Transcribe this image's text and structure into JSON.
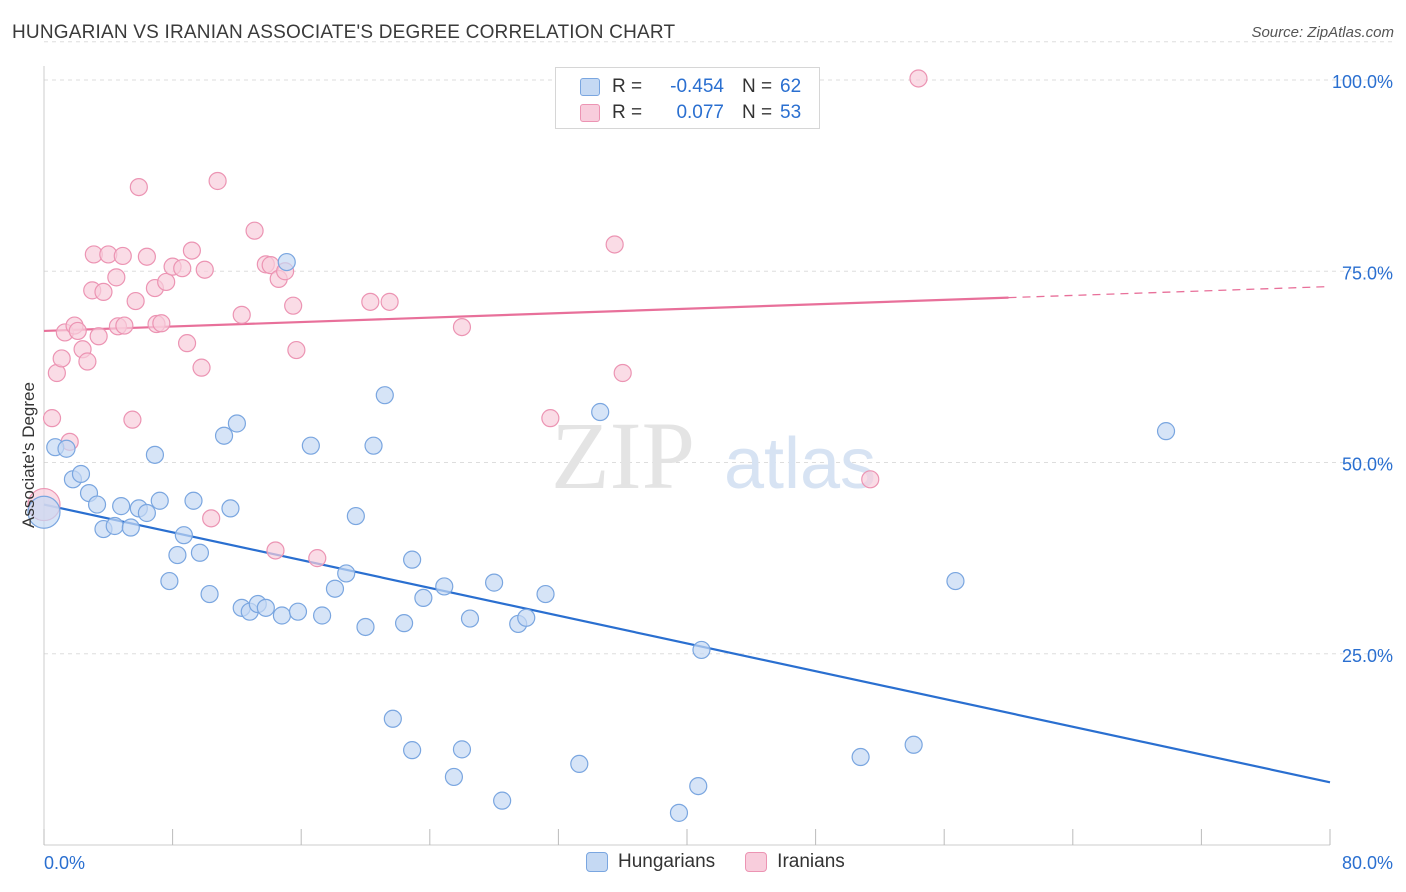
{
  "title": "HUNGARIAN VS IRANIAN ASSOCIATE'S DEGREE CORRELATION CHART",
  "source": "Source: ZipAtlas.com",
  "watermark": {
    "zip": "ZIP",
    "atlas": "atlas"
  },
  "colors": {
    "blue_fill": "#c5d9f3",
    "blue_stroke": "#7aa6e0",
    "blue_line": "#2a6fd0",
    "pink_fill": "#f8cddc",
    "pink_stroke": "#ec94b3",
    "pink_line": "#e8709a",
    "value_text": "#2a6fd0",
    "grid": "#dddddd"
  },
  "legend": {
    "rows": [
      {
        "r_label": "R =",
        "r_value": "-0.454",
        "n_label": "N =",
        "n_value": "62"
      },
      {
        "r_label": "R =",
        "r_value": "0.077",
        "n_label": "N =",
        "n_value": "53"
      }
    ]
  },
  "bottom_legend": {
    "items": [
      "Hungarians",
      "Iranians"
    ]
  },
  "chart_data": {
    "type": "scatter",
    "title": "HUNGARIAN VS IRANIAN ASSOCIATE'S DEGREE CORRELATION CHART",
    "xlabel": "",
    "ylabel": "Associate's Degree",
    "xlim": [
      0,
      80
    ],
    "ylim": [
      0,
      105
    ],
    "x_tick_labels": [
      "0.0%",
      "80.0%"
    ],
    "y_ticks": [
      25,
      50,
      75,
      100
    ],
    "y_tick_labels": [
      "25.0%",
      "50.0%",
      "75.0%",
      "100.0%"
    ],
    "grid": true,
    "legend_position": "top-center",
    "series": [
      {
        "name": "Hungarians",
        "r": -0.454,
        "n": 62,
        "trend": {
          "x": [
            0,
            80
          ],
          "y": [
            44.5,
            8.2
          ],
          "dashed_from": null
        },
        "points": [
          [
            0.0,
            43.5
          ],
          [
            0.7,
            52.0
          ],
          [
            1.4,
            51.8
          ],
          [
            1.8,
            47.8
          ],
          [
            2.3,
            48.5
          ],
          [
            2.8,
            46.0
          ],
          [
            3.3,
            44.5
          ],
          [
            3.7,
            41.3
          ],
          [
            4.4,
            41.7
          ],
          [
            4.8,
            44.3
          ],
          [
            5.4,
            41.5
          ],
          [
            5.9,
            44.0
          ],
          [
            6.4,
            43.4
          ],
          [
            6.9,
            51.0
          ],
          [
            7.2,
            45.0
          ],
          [
            7.8,
            34.5
          ],
          [
            8.3,
            37.9
          ],
          [
            8.7,
            40.5
          ],
          [
            9.3,
            45.0
          ],
          [
            9.7,
            38.2
          ],
          [
            10.3,
            32.8
          ],
          [
            11.2,
            53.5
          ],
          [
            11.6,
            44.0
          ],
          [
            12.0,
            55.1
          ],
          [
            12.3,
            31.0
          ],
          [
            12.8,
            30.5
          ],
          [
            13.3,
            31.5
          ],
          [
            13.8,
            31.0
          ],
          [
            14.8,
            30.0
          ],
          [
            15.1,
            76.2
          ],
          [
            15.8,
            30.5
          ],
          [
            16.6,
            52.2
          ],
          [
            17.3,
            30.0
          ],
          [
            18.1,
            33.5
          ],
          [
            18.8,
            35.5
          ],
          [
            19.4,
            43.0
          ],
          [
            20.0,
            28.5
          ],
          [
            20.5,
            52.2
          ],
          [
            21.2,
            58.8
          ],
          [
            21.7,
            16.5
          ],
          [
            22.4,
            29.0
          ],
          [
            22.9,
            12.4
          ],
          [
            22.9,
            37.3
          ],
          [
            23.6,
            32.3
          ],
          [
            24.9,
            33.8
          ],
          [
            25.5,
            8.9
          ],
          [
            26.0,
            12.5
          ],
          [
            26.5,
            29.6
          ],
          [
            28.0,
            34.3
          ],
          [
            28.5,
            5.8
          ],
          [
            29.5,
            28.9
          ],
          [
            30.0,
            29.7
          ],
          [
            31.2,
            32.8
          ],
          [
            33.3,
            10.6
          ],
          [
            34.6,
            56.6
          ],
          [
            39.5,
            4.2
          ],
          [
            40.7,
            7.7
          ],
          [
            40.9,
            25.5
          ],
          [
            50.8,
            11.5
          ],
          [
            54.1,
            13.1
          ],
          [
            56.7,
            34.5
          ],
          [
            69.8,
            54.1
          ]
        ]
      },
      {
        "name": "Iranians",
        "r": 0.077,
        "n": 53,
        "trend": {
          "x": [
            0,
            80
          ],
          "y": [
            67.2,
            73.0
          ],
          "dashed_from": 60.0
        },
        "points": [
          [
            0.0,
            44.5
          ],
          [
            0.5,
            55.8
          ],
          [
            0.8,
            61.7
          ],
          [
            1.1,
            63.6
          ],
          [
            1.3,
            67.0
          ],
          [
            1.6,
            52.7
          ],
          [
            1.9,
            67.9
          ],
          [
            2.1,
            67.2
          ],
          [
            2.4,
            64.8
          ],
          [
            2.7,
            63.2
          ],
          [
            3.0,
            72.5
          ],
          [
            3.1,
            77.2
          ],
          [
            3.4,
            66.5
          ],
          [
            3.7,
            72.3
          ],
          [
            4.0,
            77.2
          ],
          [
            4.5,
            74.2
          ],
          [
            4.6,
            67.8
          ],
          [
            4.9,
            77.0
          ],
          [
            5.0,
            67.9
          ],
          [
            5.5,
            55.6
          ],
          [
            5.7,
            71.1
          ],
          [
            5.9,
            86.0
          ],
          [
            6.4,
            76.9
          ],
          [
            6.9,
            72.8
          ],
          [
            7.0,
            68.1
          ],
          [
            7.3,
            68.2
          ],
          [
            7.6,
            73.6
          ],
          [
            8.0,
            75.6
          ],
          [
            8.6,
            75.4
          ],
          [
            8.9,
            65.6
          ],
          [
            9.2,
            77.7
          ],
          [
            9.8,
            62.4
          ],
          [
            10.0,
            75.2
          ],
          [
            10.4,
            42.7
          ],
          [
            10.8,
            86.8
          ],
          [
            12.3,
            69.3
          ],
          [
            13.1,
            80.3
          ],
          [
            13.8,
            75.9
          ],
          [
            14.1,
            75.8
          ],
          [
            14.4,
            38.5
          ],
          [
            14.6,
            74.0
          ],
          [
            15.0,
            75.0
          ],
          [
            15.5,
            70.5
          ],
          [
            15.7,
            64.7
          ],
          [
            17.0,
            37.5
          ],
          [
            20.3,
            71.0
          ],
          [
            21.5,
            71.0
          ],
          [
            26.0,
            67.7
          ],
          [
            31.5,
            55.8
          ],
          [
            35.5,
            78.5
          ],
          [
            36.0,
            61.7
          ],
          [
            51.4,
            47.8
          ],
          [
            54.4,
            100.2
          ]
        ]
      }
    ]
  }
}
